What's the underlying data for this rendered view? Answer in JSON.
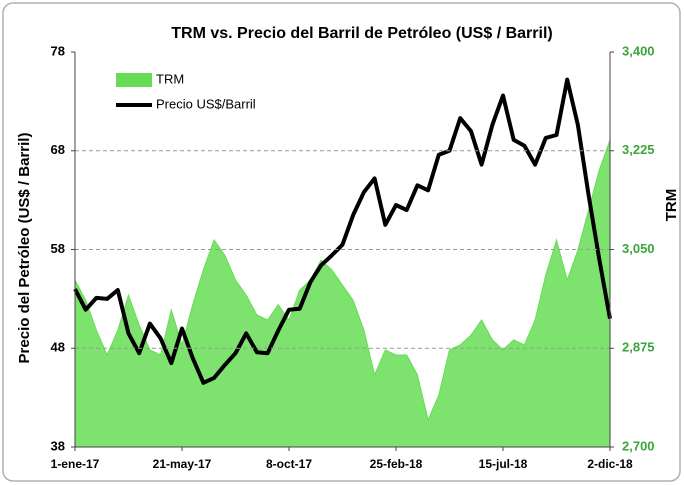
{
  "chart_data": {
    "type": "line",
    "title": "TRM vs. Precio del Barril de Petróleo (US$ / Barril)",
    "ylabel": "Precio del Petróleo (US$ / Barril)",
    "y2label": "TRM",
    "categories": [
      "1-ene-17",
      null,
      null,
      null,
      null,
      null,
      null,
      null,
      null,
      null,
      "21-may-17",
      null,
      null,
      null,
      null,
      null,
      null,
      null,
      null,
      null,
      "8-oct-17",
      null,
      null,
      null,
      null,
      null,
      null,
      null,
      null,
      null,
      "25-feb-18",
      null,
      null,
      null,
      null,
      null,
      null,
      null,
      null,
      null,
      "15-jul-18",
      null,
      null,
      null,
      null,
      null,
      null,
      null,
      null,
      null,
      "2-dic-18"
    ],
    "series": [
      {
        "name": "TRM",
        "color": "#66dd55",
        "mark": "area",
        "axis": "y2",
        "values": [
          2996,
          2960,
          2907,
          2863,
          2907,
          2969,
          2916,
          2872,
          2863,
          2943,
          2881,
          2952,
          3014,
          3067,
          3040,
          2996,
          2969,
          2934,
          2925,
          2952,
          2925,
          2978,
          2996,
          3031,
          3014,
          2987,
          2960,
          2907,
          2828,
          2872,
          2863,
          2863,
          2828,
          2748,
          2792,
          2872,
          2881,
          2898,
          2925,
          2890,
          2872,
          2890,
          2881,
          2925,
          3005,
          3067,
          2996,
          3049,
          3120,
          3191,
          3244
        ]
      },
      {
        "name": "Precio US$/Barril",
        "color": "#000000",
        "mark": "line",
        "values": [
          54,
          51.9,
          53.1,
          53,
          53.9,
          49.5,
          47.5,
          50.5,
          49,
          46.5,
          50,
          47,
          44.5,
          45,
          46.3,
          47.5,
          49.5,
          47.6,
          47.5,
          49.8,
          51.9,
          52,
          54.7,
          56.4,
          57.4,
          58.5,
          61.5,
          63.8,
          65.2,
          60.5,
          62.5,
          62,
          64.5,
          64,
          67.6,
          68,
          71.3,
          70,
          66.6,
          70.6,
          73.6,
          69.1,
          68.5,
          66.6,
          69.3,
          69.6,
          75.2,
          70.6,
          63.5,
          57,
          51
        ]
      }
    ],
    "ylim": [
      38,
      78
    ],
    "yticks": [
      38,
      48,
      58,
      68,
      78
    ],
    "y2lim": [
      2700,
      3400
    ],
    "y2ticks": [
      {
        "value": 2700,
        "label": "2,700"
      },
      {
        "value": 2875,
        "label": "2,875"
      },
      {
        "value": 3050,
        "label": "3,050"
      },
      {
        "value": 3225,
        "label": "3,225"
      },
      {
        "value": 3400,
        "label": "3,400"
      }
    ],
    "grid": true,
    "legend": "upper left"
  }
}
